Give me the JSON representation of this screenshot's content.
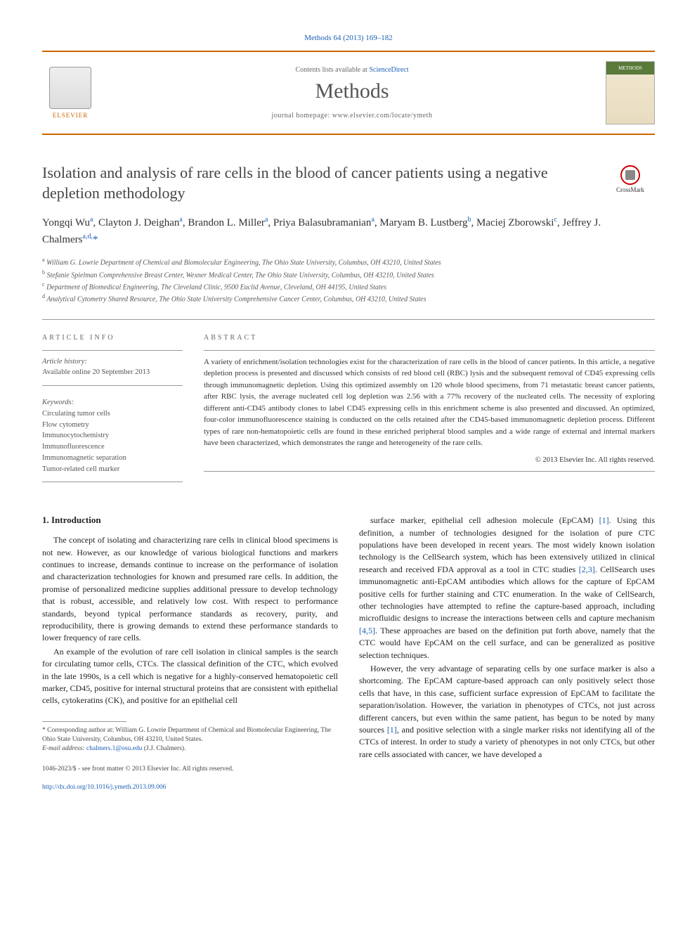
{
  "citation": "Methods 64 (2013) 169–182",
  "header": {
    "contents_prefix": "Contents lists available at ",
    "contents_link": "ScienceDirect",
    "journal_name": "Methods",
    "homepage_prefix": "journal homepage: ",
    "homepage_url": "www.elsevier.com/locate/ymeth",
    "publisher": "ELSEVIER",
    "cover_label": "METHODS"
  },
  "crossmark": "CrossMark",
  "title": "Isolation and analysis of rare cells in the blood of cancer patients using a negative depletion methodology",
  "authors_html": "Yongqi Wu<sup>a</sup>, Clayton J. Deighan<sup>a</sup>, Brandon L. Miller<sup>a</sup>, Priya Balasubramanian<sup>a</sup>, Maryam B. Lustberg<sup>b</sup>, Maciej Zborowski<sup>c</sup>, Jeffrey J. Chalmers<sup>a,d,</sup><span class='star'>*</span>",
  "affiliations": [
    {
      "sup": "a",
      "text": "William G. Lowrie Department of Chemical and Biomolecular Engineering, The Ohio State University, Columbus, OH 43210, United States"
    },
    {
      "sup": "b",
      "text": "Stefanie Spielman Comprehensive Breast Center, Wexner Medical Center, The Ohio State University, Columbus, OH 43210, United States"
    },
    {
      "sup": "c",
      "text": "Department of Biomedical Engineering, The Cleveland Clinic, 9500 Euclid Avenue, Cleveland, OH 44195, United States"
    },
    {
      "sup": "d",
      "text": "Analytical Cytometry Shared Resource, The Ohio State University Comprehensive Cancer Center, Columbus, OH 43210, United States"
    }
  ],
  "article_info": {
    "label": "ARTICLE INFO",
    "history_label": "Article history:",
    "history_text": "Available online 20 September 2013",
    "keywords_label": "Keywords:",
    "keywords": [
      "Circulating tumor cells",
      "Flow cytometry",
      "Immunocytochemistry",
      "Immunofluorescence",
      "Immunomagnetic separation",
      "Tumor-related cell marker"
    ]
  },
  "abstract": {
    "label": "ABSTRACT",
    "text": "A variety of enrichment/isolation technologies exist for the characterization of rare cells in the blood of cancer patients. In this article, a negative depletion process is presented and discussed which consists of red blood cell (RBC) lysis and the subsequent removal of CD45 expressing cells through immunomagnetic depletion. Using this optimized assembly on 120 whole blood specimens, from 71 metastatic breast cancer patients, after RBC lysis, the average nucleated cell log depletion was 2.56 with a 77% recovery of the nucleated cells. The necessity of exploring different anti-CD45 antibody clones to label CD45 expressing cells in this enrichment scheme is also presented and discussed. An optimized, four-color immunofluorescence staining is conducted on the cells retained after the CD45-based immunomagnetic depletion process. Different types of rare non-hematopoietic cells are found in these enriched peripheral blood samples and a wide range of external and internal markers have been characterized, which demonstrates the range and heterogeneity of the rare cells.",
    "copyright": "© 2013 Elsevier Inc. All rights reserved."
  },
  "body": {
    "section_number": "1.",
    "section_title": "Introduction",
    "col1": [
      "The concept of isolating and characterizing rare cells in clinical blood specimens is not new. However, as our knowledge of various biological functions and markers continues to increase, demands continue to increase on the performance of isolation and characterization technologies for known and presumed rare cells. In addition, the promise of personalized medicine supplies additional pressure to develop technology that is robust, accessible, and relatively low cost. With respect to performance standards, beyond typical performance standards as recovery, purity, and reproducibility, there is growing demands to extend these performance standards to lower frequency of rare cells.",
      "An example of the evolution of rare cell isolation in clinical samples is the search for circulating tumor cells, CTCs. The classical definition of the CTC, which evolved in the late 1990s, is a cell which is negative for a highly-conserved hematopoietic cell marker, CD45, positive for internal structural proteins that are consistent with epithelial cells, cytokeratins (CK), and positive for an epithelial cell"
    ],
    "col2": [
      "surface marker, epithelial cell adhesion molecule (EpCAM) [1]. Using this definition, a number of technologies designed for the isolation of pure CTC populations have been developed in recent years. The most widely known isolation technology is the CellSearch system, which has been extensively utilized in clinical research and received FDA approval as a tool in CTC studies [2,3]. CellSearch uses immunomagnetic anti-EpCAM antibodies which allows for the capture of EpCAM positive cells for further staining and CTC enumeration. In the wake of CellSearch, other technologies have attempted to refine the capture-based approach, including microfluidic designs to increase the interactions between cells and capture mechanism [4,5]. These approaches are based on the definition put forth above, namely that the CTC would have EpCAM on the cell surface, and can be generalized as positive selection techniques.",
      "However, the very advantage of separating cells by one surface marker is also a shortcoming. The EpCAM capture-based approach can only positively select those cells that have, in this case, sufficient surface expression of EpCAM to facilitate the separation/isolation. However, the variation in phenotypes of CTCs, not just across different cancers, but even within the same patient, has begun to be noted by many sources [1], and positive selection with a single marker risks not identifying all of the CTCs of interest. In order to study a variety of phenotypes in not only CTCs, but other rare cells associated with cancer, we have developed a"
    ]
  },
  "footnote": {
    "corresponding": "* Corresponding author at: William G. Lowrie Department of Chemical and Biomolecular Engineering, The Ohio State University, Columbus, OH 43210, United States.",
    "email_label": "E-mail address: ",
    "email": "chalmers.1@osu.edu",
    "email_suffix": " (J.J. Chalmers)."
  },
  "footer": {
    "line1": "1046-2023/$ - see front matter © 2013 Elsevier Inc. All rights reserved.",
    "doi": "http://dx.doi.org/10.1016/j.ymeth.2013.09.006"
  },
  "refs": {
    "r1": "[1]",
    "r23": "[2,3]",
    "r45": "[4,5]"
  },
  "colors": {
    "accent": "#cc6600",
    "link": "#1a5fb4",
    "text": "#333333",
    "light_text": "#666666"
  }
}
